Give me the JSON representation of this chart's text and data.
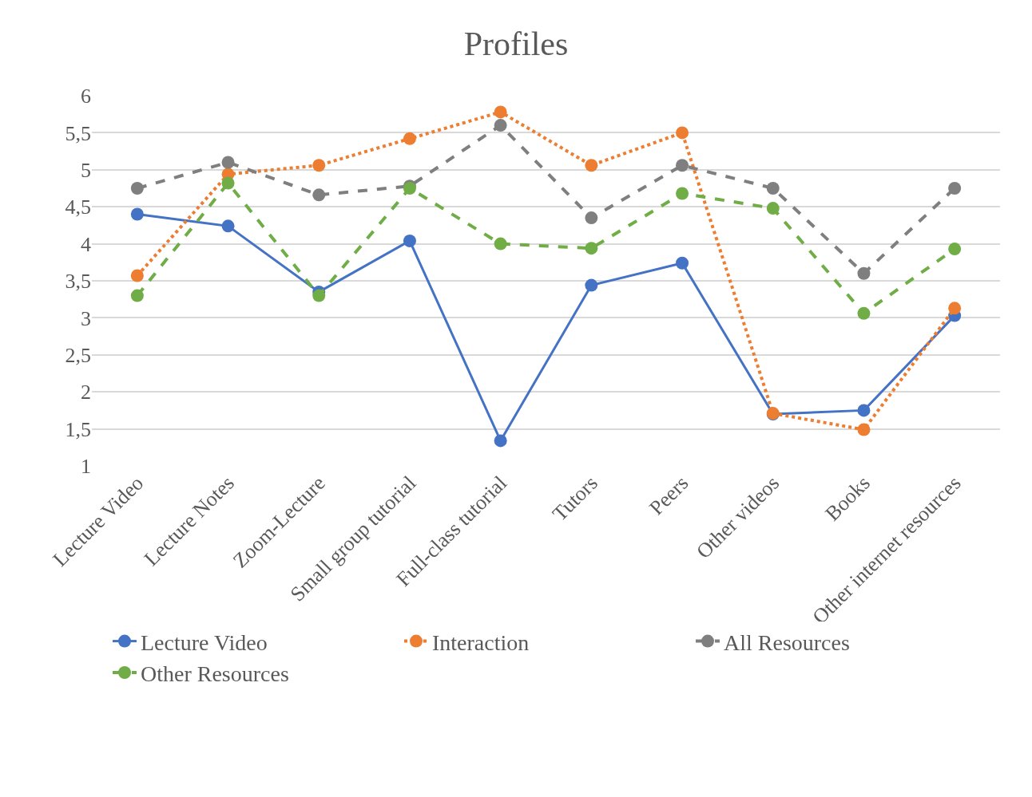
{
  "chart_data": {
    "type": "line",
    "title": "Profiles",
    "categories": [
      "Lecture Video",
      "Lecture Notes",
      "Zoom-Lecture",
      "Small group tutorial",
      "Full-class tutorial",
      "Tutors",
      "Peers",
      "Other videos",
      "Books",
      "Other internet resources"
    ],
    "series": [
      {
        "name": "Lecture Video",
        "color": "#4472c4",
        "line_style": "solid",
        "values": [
          4.4,
          4.24,
          3.35,
          4.04,
          1.34,
          3.44,
          3.74,
          1.7,
          1.75,
          3.03
        ]
      },
      {
        "name": "Interaction",
        "color": "#ed7d31",
        "line_style": "dotted",
        "values": [
          3.57,
          4.94,
          5.06,
          5.42,
          5.78,
          5.06,
          5.5,
          1.71,
          1.49,
          3.13
        ]
      },
      {
        "name": "All Resources",
        "color": "#7f7f7f",
        "line_style": "dashed",
        "values": [
          4.75,
          5.1,
          4.66,
          4.78,
          5.6,
          4.35,
          5.06,
          4.75,
          3.6,
          4.75
        ]
      },
      {
        "name": "Other Resources",
        "color": "#70ad47",
        "line_style": "dashed",
        "values": [
          3.3,
          4.82,
          3.3,
          4.75,
          4.0,
          3.94,
          4.68,
          4.48,
          3.06,
          3.93
        ]
      }
    ],
    "ylim": [
      1,
      6
    ],
    "yticks": [
      1,
      {
        "value": 1.5,
        "label": "1,5"
      },
      2,
      {
        "value": 2.5,
        "label": "2,5"
      },
      3,
      {
        "value": 3.5,
        "label": "3,5"
      },
      4,
      {
        "value": 4.5,
        "label": "4,5"
      },
      5,
      {
        "value": 5.5,
        "label": "5,5"
      },
      6
    ],
    "grid": "y",
    "legend": "bottom",
    "marker": "circle"
  }
}
